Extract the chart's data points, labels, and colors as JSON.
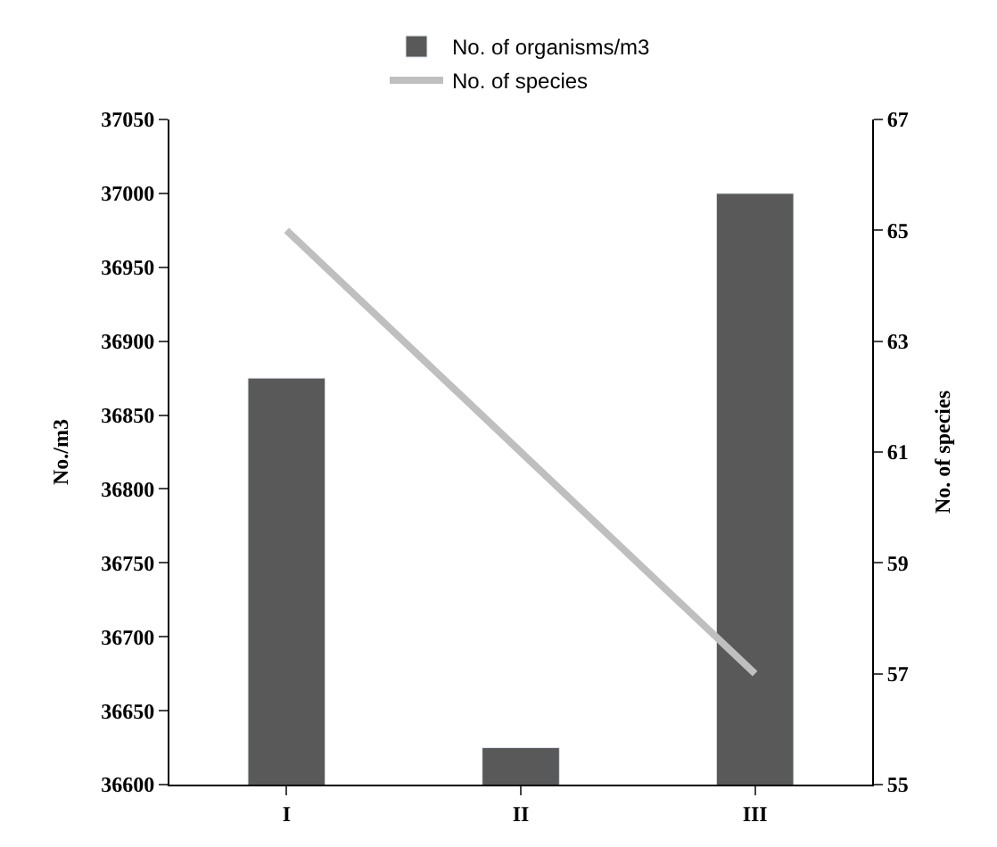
{
  "chart_data": {
    "type": "bar",
    "categories": [
      "I",
      "II",
      "III"
    ],
    "series": [
      {
        "name": "No. of organisms/m3",
        "color": "#595959",
        "values": [
          36875,
          36625,
          37000
        ]
      },
      {
        "name": "No. of species",
        "type": "line",
        "axis": "y2",
        "color": "#bfbfbf",
        "values": [
          65,
          61,
          57
        ],
        "marker": "none",
        "line_style": "solid"
      }
    ],
    "ylabel": "No./m3",
    "y2label": "No. of species",
    "ylim": [
      36600,
      37050
    ],
    "yticks": [
      36600,
      36650,
      36700,
      36750,
      36800,
      36850,
      36900,
      36950,
      37000,
      37050
    ],
    "y2lim": [
      55,
      67
    ],
    "y2ticks": [
      55,
      57,
      59,
      61,
      63,
      65,
      67
    ],
    "legend": "top"
  }
}
